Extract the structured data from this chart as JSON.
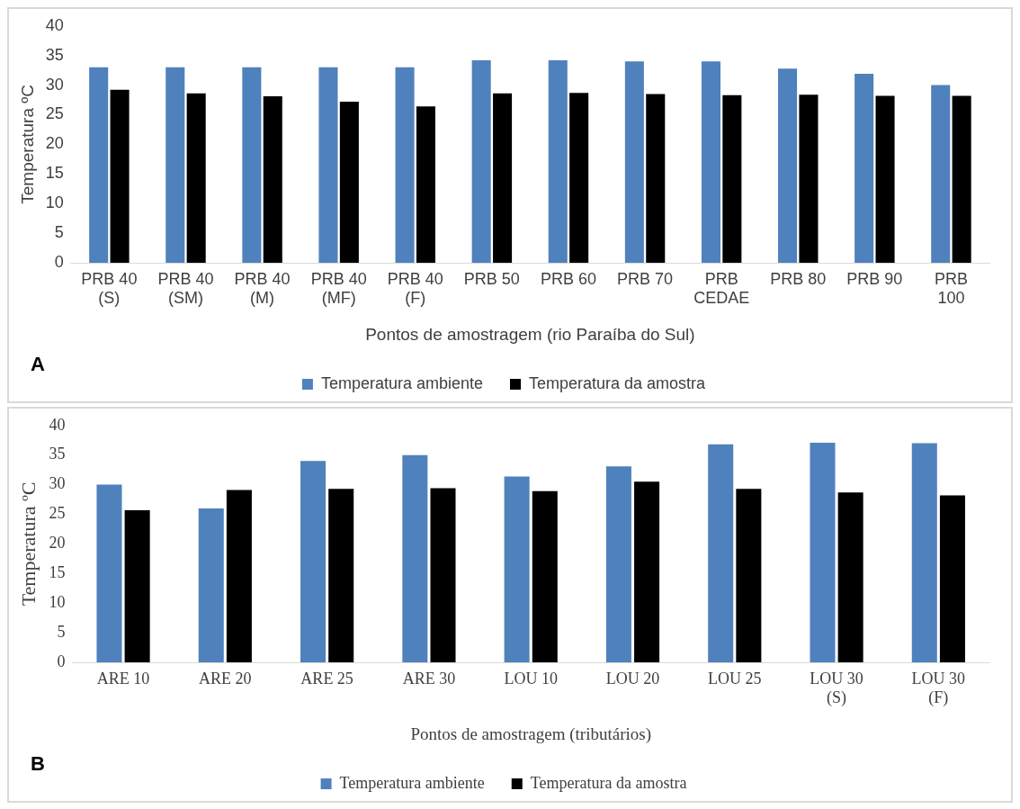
{
  "chart_data": [
    {
      "type": "bar",
      "ylabel": "Temperatura ºC",
      "xlabel": "Pontos de amostragem (rio Paraíba do Sul)",
      "categories": [
        "PRB 40 (S)",
        "PRB 40 (SM)",
        "PRB 40 (M)",
        "PRB 40 (MF)",
        "PRB 40 (F)",
        "PRB 50",
        "PRB 60",
        "PRB 70",
        "PRB CEDAE",
        "PRB 80",
        "PRB 90",
        "PRB 100"
      ],
      "series": [
        {
          "name": "Temperatura ambiente",
          "color": "#4f81bd",
          "values": [
            33,
            33,
            33,
            33,
            33,
            34.2,
            34.2,
            34,
            34,
            32.8,
            31.9,
            30
          ]
        },
        {
          "name": "Temperatura da amostra",
          "color": "#000000",
          "values": [
            29.2,
            28.6,
            28.1,
            27.2,
            26.4,
            28.6,
            28.7,
            28.5,
            28.3,
            28.4,
            28.2,
            28.2
          ]
        }
      ],
      "ylim": [
        0,
        40
      ],
      "yticks": [
        0,
        5,
        10,
        15,
        20,
        25,
        30,
        35,
        40
      ],
      "grid": false,
      "legend": "bottom",
      "annotations": [
        "A"
      ]
    },
    {
      "type": "bar",
      "ylabel": "Temperatura ºC",
      "xlabel": "Pontos de amostragem (tributários)",
      "categories": [
        "ARE 10",
        "ARE 20",
        "ARE 25",
        "ARE 30",
        "LOU 10",
        "LOU 20",
        "LOU 25",
        "LOU 30 (S)",
        "LOU 30 (F)"
      ],
      "series": [
        {
          "name": "Temperatura ambiente",
          "color": "#4f81bd",
          "values": [
            30,
            26,
            34,
            35,
            31.4,
            33.1,
            36.8,
            37.1,
            37
          ]
        },
        {
          "name": "Temperatura da amostra",
          "color": "#000000",
          "values": [
            25.7,
            29.1,
            29.3,
            29.4,
            28.9,
            30.5,
            29.3,
            28.7,
            28.2
          ]
        }
      ],
      "ylim": [
        0,
        40
      ],
      "yticks": [
        0,
        5,
        10,
        15,
        20,
        25,
        30,
        35,
        40
      ],
      "grid": false,
      "legend": "bottom",
      "annotations": [
        "B"
      ]
    }
  ]
}
